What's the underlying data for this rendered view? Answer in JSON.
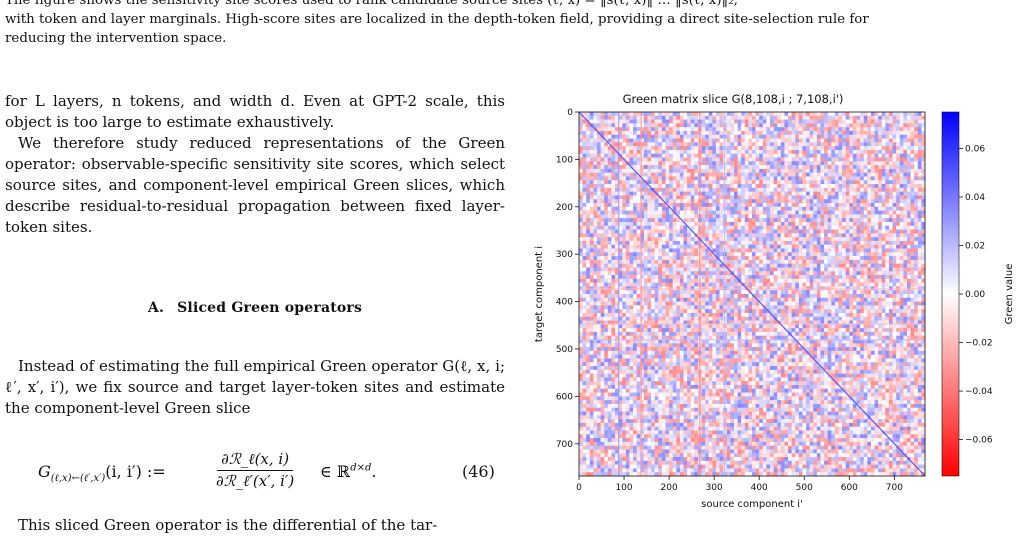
{
  "caption": {
    "line1": "The figure shows the sensitivity site scores used to rank candidate source sites (ℓ, x) = ‖s(ℓ, x)‖ … ‖s(ℓ, x)‖₂,",
    "line2": "with token and layer marginals. High-score sites are localized in the depth-token field, providing a direct site-selection rule for",
    "line3": "reducing the intervention space."
  },
  "body": {
    "p1": "for L layers, n tokens, and width d. Even at GPT-2 scale, this object is too large to estimate exhaustively.",
    "p2": "We therefore study reduced representations of the Green operator: observable-specific sensitivity site scores, which select source sites, and component-level empirical Green slices, which describe residual-to-residual propagation between fixed layer-token sites.",
    "section_num": "A.",
    "section_title": "Sliced Green operators",
    "p3": "Instead of estimating the full empirical Green operator G(ℓ, x, i; ℓ′, x′, i′), we fix source and target layer-token sites and estimate the component-level Green slice",
    "eq_lhs": "G",
    "eq_sub": "(ℓ,x)←(ℓ′,x′)",
    "eq_args": "(i, i′) :=",
    "eq_num": "∂ℛ_ℓ(x, i)",
    "eq_den": "∂ℛ_ℓ′(x′, i′)",
    "eq_rhs": "∈ ℝ",
    "eq_sup": "d×d",
    "eq_period": ".",
    "eq_label": "(46)",
    "p4": "This sliced Green operator is the differential of the tar-"
  },
  "chart_data": {
    "type": "heatmap",
    "title": "Green matrix slice G(8,108,i ; 7,108,i')",
    "xlabel": "source component i'",
    "ylabel": "target component i",
    "xlim": [
      0,
      768
    ],
    "ylim": [
      768,
      0
    ],
    "x_ticks": [
      0,
      100,
      200,
      300,
      400,
      500,
      600,
      700
    ],
    "y_ticks": [
      0,
      100,
      200,
      300,
      400,
      500,
      600,
      700
    ],
    "colorbar": {
      "label": "Green value",
      "colormap": "bwr_r",
      "range": [
        -0.075,
        0.075
      ],
      "ticks": [
        0.06,
        0.04,
        0.02,
        0.0,
        -0.02,
        -0.04,
        -0.06
      ],
      "tick_labels": [
        "0.06",
        "0.04",
        "0.02",
        "0.00",
        "−0.02",
        "−0.04",
        "−0.06"
      ]
    },
    "diagonal_value": 0.05,
    "noise_amplitude": 0.035,
    "highlight_columns": [
      {
        "index": 88,
        "value": 0.03
      },
      {
        "index": 138,
        "value": -0.03
      },
      {
        "index": 268,
        "value": -0.035
      },
      {
        "index": 323,
        "value": 0.02
      }
    ],
    "highlight_rows": [
      {
        "index": 373,
        "value": -0.02
      },
      {
        "index": 447,
        "value": -0.02
      },
      {
        "index": 481,
        "value": 0.02
      }
    ],
    "colors": {
      "positive": "#0000ff",
      "negative": "#ff0000",
      "zero": "#ffffff"
    }
  }
}
